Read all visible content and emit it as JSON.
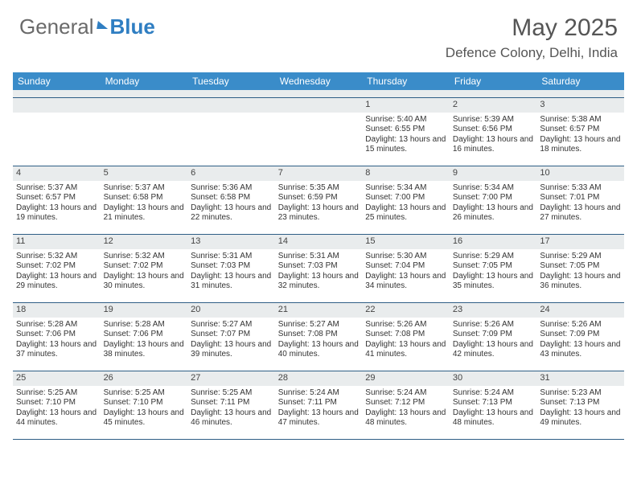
{
  "logo": {
    "text1": "General",
    "text2": "Blue"
  },
  "title": "May 2025",
  "location": "Defence Colony, Delhi, India",
  "colors": {
    "header_bg": "#3a8cc9",
    "header_text": "#ffffff",
    "rule": "#2f5e85",
    "daynum_bg": "#e9eced",
    "body_text": "#333333",
    "logo_gray": "#6a6a6a",
    "logo_blue": "#2f7ec2"
  },
  "weekdays": [
    "Sunday",
    "Monday",
    "Tuesday",
    "Wednesday",
    "Thursday",
    "Friday",
    "Saturday"
  ],
  "weeks": [
    [
      {
        "n": "",
        "empty": true
      },
      {
        "n": "",
        "empty": true
      },
      {
        "n": "",
        "empty": true
      },
      {
        "n": "",
        "empty": true
      },
      {
        "n": "1",
        "sr": "5:40 AM",
        "ss": "6:55 PM",
        "dl": "13 hours and 15 minutes."
      },
      {
        "n": "2",
        "sr": "5:39 AM",
        "ss": "6:56 PM",
        "dl": "13 hours and 16 minutes."
      },
      {
        "n": "3",
        "sr": "5:38 AM",
        "ss": "6:57 PM",
        "dl": "13 hours and 18 minutes."
      }
    ],
    [
      {
        "n": "4",
        "sr": "5:37 AM",
        "ss": "6:57 PM",
        "dl": "13 hours and 19 minutes."
      },
      {
        "n": "5",
        "sr": "5:37 AM",
        "ss": "6:58 PM",
        "dl": "13 hours and 21 minutes."
      },
      {
        "n": "6",
        "sr": "5:36 AM",
        "ss": "6:58 PM",
        "dl": "13 hours and 22 minutes."
      },
      {
        "n": "7",
        "sr": "5:35 AM",
        "ss": "6:59 PM",
        "dl": "13 hours and 23 minutes."
      },
      {
        "n": "8",
        "sr": "5:34 AM",
        "ss": "7:00 PM",
        "dl": "13 hours and 25 minutes."
      },
      {
        "n": "9",
        "sr": "5:34 AM",
        "ss": "7:00 PM",
        "dl": "13 hours and 26 minutes."
      },
      {
        "n": "10",
        "sr": "5:33 AM",
        "ss": "7:01 PM",
        "dl": "13 hours and 27 minutes."
      }
    ],
    [
      {
        "n": "11",
        "sr": "5:32 AM",
        "ss": "7:02 PM",
        "dl": "13 hours and 29 minutes."
      },
      {
        "n": "12",
        "sr": "5:32 AM",
        "ss": "7:02 PM",
        "dl": "13 hours and 30 minutes."
      },
      {
        "n": "13",
        "sr": "5:31 AM",
        "ss": "7:03 PM",
        "dl": "13 hours and 31 minutes."
      },
      {
        "n": "14",
        "sr": "5:31 AM",
        "ss": "7:03 PM",
        "dl": "13 hours and 32 minutes."
      },
      {
        "n": "15",
        "sr": "5:30 AM",
        "ss": "7:04 PM",
        "dl": "13 hours and 34 minutes."
      },
      {
        "n": "16",
        "sr": "5:29 AM",
        "ss": "7:05 PM",
        "dl": "13 hours and 35 minutes."
      },
      {
        "n": "17",
        "sr": "5:29 AM",
        "ss": "7:05 PM",
        "dl": "13 hours and 36 minutes."
      }
    ],
    [
      {
        "n": "18",
        "sr": "5:28 AM",
        "ss": "7:06 PM",
        "dl": "13 hours and 37 minutes."
      },
      {
        "n": "19",
        "sr": "5:28 AM",
        "ss": "7:06 PM",
        "dl": "13 hours and 38 minutes."
      },
      {
        "n": "20",
        "sr": "5:27 AM",
        "ss": "7:07 PM",
        "dl": "13 hours and 39 minutes."
      },
      {
        "n": "21",
        "sr": "5:27 AM",
        "ss": "7:08 PM",
        "dl": "13 hours and 40 minutes."
      },
      {
        "n": "22",
        "sr": "5:26 AM",
        "ss": "7:08 PM",
        "dl": "13 hours and 41 minutes."
      },
      {
        "n": "23",
        "sr": "5:26 AM",
        "ss": "7:09 PM",
        "dl": "13 hours and 42 minutes."
      },
      {
        "n": "24",
        "sr": "5:26 AM",
        "ss": "7:09 PM",
        "dl": "13 hours and 43 minutes."
      }
    ],
    [
      {
        "n": "25",
        "sr": "5:25 AM",
        "ss": "7:10 PM",
        "dl": "13 hours and 44 minutes."
      },
      {
        "n": "26",
        "sr": "5:25 AM",
        "ss": "7:10 PM",
        "dl": "13 hours and 45 minutes."
      },
      {
        "n": "27",
        "sr": "5:25 AM",
        "ss": "7:11 PM",
        "dl": "13 hours and 46 minutes."
      },
      {
        "n": "28",
        "sr": "5:24 AM",
        "ss": "7:11 PM",
        "dl": "13 hours and 47 minutes."
      },
      {
        "n": "29",
        "sr": "5:24 AM",
        "ss": "7:12 PM",
        "dl": "13 hours and 48 minutes."
      },
      {
        "n": "30",
        "sr": "5:24 AM",
        "ss": "7:13 PM",
        "dl": "13 hours and 48 minutes."
      },
      {
        "n": "31",
        "sr": "5:23 AM",
        "ss": "7:13 PM",
        "dl": "13 hours and 49 minutes."
      }
    ]
  ],
  "labels": {
    "sunrise": "Sunrise:",
    "sunset": "Sunset:",
    "daylight": "Daylight:"
  }
}
